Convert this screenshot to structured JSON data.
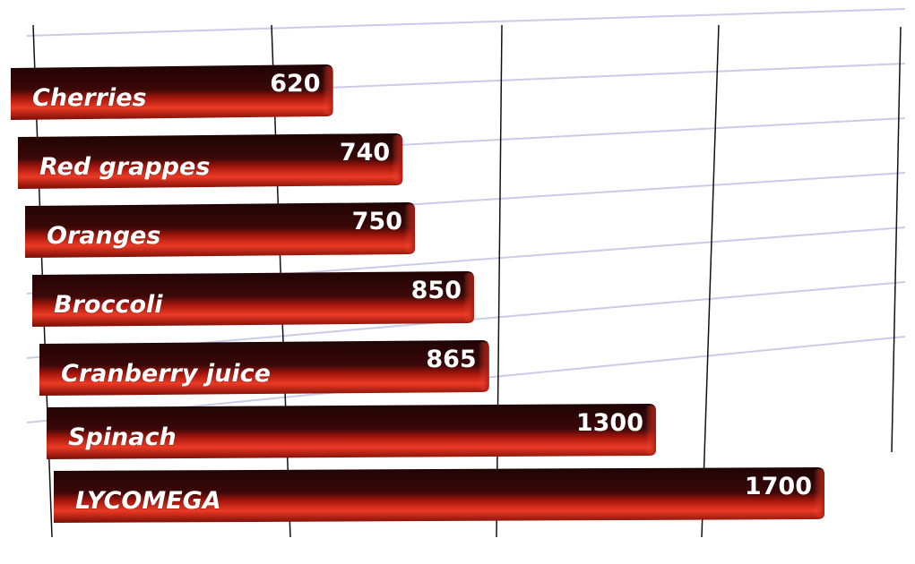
{
  "chart_data": {
    "type": "bar",
    "orientation": "horizontal",
    "title": "",
    "xlabel": "",
    "ylabel": "",
    "categories": [
      "Cherries",
      "Red grappes",
      "Oranges",
      "Broccoli",
      "Cranberry juice",
      "Spinach",
      "LYCOMEGA"
    ],
    "values": [
      620,
      740,
      750,
      850,
      865,
      1300,
      1700
    ],
    "value_labels": [
      "620",
      "740",
      "750",
      "850",
      "865",
      "1300",
      "1700"
    ],
    "xlim": [
      0,
      2000
    ],
    "grid": true,
    "legend": "none",
    "style": "3d-perspective",
    "colors": {
      "bar_top": "#2a0707",
      "bar_front": "#e0301f",
      "bar_front_dark": "#7a0e06",
      "grid_horizontal": "#c9cce8",
      "grid_vertical": "#111111"
    }
  }
}
